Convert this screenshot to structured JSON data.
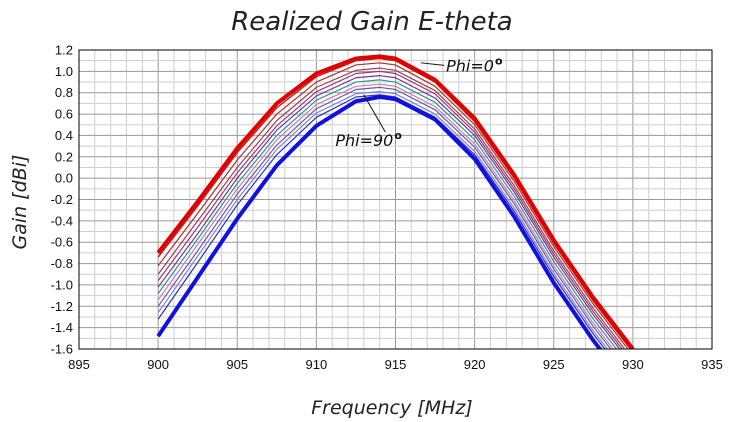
{
  "chart_data": {
    "type": "line",
    "title": "Realized Gain E-theta",
    "xlabel": "Frequency [MHz]",
    "ylabel": "Gain [dBi]",
    "xlim": [
      895,
      935
    ],
    "ylim": [
      -1.6,
      1.2
    ],
    "x_ticks": [
      "895",
      "900",
      "905",
      "910",
      "915",
      "920",
      "925",
      "930",
      "935"
    ],
    "y_ticks": [
      "1.2",
      "1.0",
      "0.8",
      "0.6",
      "0.4",
      "0.2",
      "0.0",
      "-0.2",
      "-0.4",
      "-0.6",
      "-0.8",
      "-1.0",
      "-1.2",
      "-1.4",
      "-1.6"
    ],
    "grid": true,
    "x": [
      900,
      902.5,
      905,
      907.5,
      910,
      912.5,
      914,
      915,
      917.5,
      920,
      922.5,
      925,
      927.5,
      930
    ],
    "series": [
      {
        "color": "#e00000",
        "width": 4,
        "values": [
          -0.7,
          -0.22,
          0.28,
          0.7,
          0.98,
          1.12,
          1.14,
          1.12,
          0.92,
          0.56,
          0.03,
          -0.58,
          -1.12,
          -1.6
        ]
      },
      {
        "color": "#c02020",
        "width": 1.5,
        "values": [
          -0.74,
          -0.26,
          0.24,
          0.66,
          0.95,
          1.1,
          1.12,
          1.1,
          0.9,
          0.53,
          0.0,
          -0.61,
          -1.15,
          -1.63
        ]
      },
      {
        "color": "#b03030",
        "width": 1.2,
        "values": [
          -0.82,
          -0.33,
          0.17,
          0.6,
          0.9,
          1.06,
          1.08,
          1.06,
          0.86,
          0.5,
          -0.03,
          -0.64,
          -1.18,
          -1.66
        ]
      },
      {
        "color": "#a04050",
        "width": 1.2,
        "values": [
          -0.9,
          -0.4,
          0.1,
          0.54,
          0.85,
          1.01,
          1.03,
          1.01,
          0.82,
          0.46,
          -0.07,
          -0.68,
          -1.22,
          -1.7
        ]
      },
      {
        "color": "#904070",
        "width": 1.2,
        "values": [
          -0.96,
          -0.46,
          0.05,
          0.49,
          0.81,
          0.98,
          1.0,
          0.98,
          0.79,
          0.43,
          -0.1,
          -0.71,
          -1.25,
          -1.73
        ]
      },
      {
        "color": "#8030a0",
        "width": 1.2,
        "values": [
          -1.02,
          -0.52,
          0.0,
          0.45,
          0.77,
          0.94,
          0.96,
          0.94,
          0.75,
          0.4,
          -0.13,
          -0.74,
          -1.28,
          -1.76
        ]
      },
      {
        "color": "#20a080",
        "width": 1.2,
        "values": [
          -1.08,
          -0.57,
          -0.05,
          0.4,
          0.73,
          0.9,
          0.92,
          0.9,
          0.71,
          0.36,
          -0.17,
          -0.78,
          -1.32,
          -1.8
        ]
      },
      {
        "color": "#e070c0",
        "width": 1.2,
        "values": [
          -1.14,
          -0.62,
          -0.1,
          0.36,
          0.69,
          0.86,
          0.88,
          0.86,
          0.67,
          0.32,
          -0.21,
          -0.82,
          -1.36,
          -1.84
        ]
      },
      {
        "color": "#6060a0",
        "width": 1.2,
        "values": [
          -1.2,
          -0.68,
          -0.15,
          0.31,
          0.65,
          0.83,
          0.85,
          0.83,
          0.64,
          0.29,
          -0.24,
          -0.85,
          -1.39,
          -1.87
        ]
      },
      {
        "color": "#8080e0",
        "width": 1.2,
        "values": [
          -1.26,
          -0.73,
          -0.2,
          0.27,
          0.61,
          0.79,
          0.81,
          0.79,
          0.6,
          0.25,
          -0.28,
          -0.89,
          -1.43,
          -1.91
        ]
      },
      {
        "color": "#3030c0",
        "width": 1.2,
        "values": [
          -1.32,
          -0.79,
          -0.25,
          0.22,
          0.57,
          0.76,
          0.78,
          0.76,
          0.57,
          0.22,
          -0.31,
          -0.92,
          -1.46,
          -1.94
        ]
      },
      {
        "color": "#1010e0",
        "width": 4,
        "values": [
          -1.48,
          -0.93,
          -0.38,
          0.12,
          0.49,
          0.72,
          0.76,
          0.74,
          0.55,
          0.18,
          -0.36,
          -0.98,
          -1.52,
          -2.0
        ]
      }
    ],
    "annotations": [
      {
        "text": "Phi=0",
        "sup": "o",
        "x": 918.2,
        "y": 1.0,
        "arrow_to": [
          916.6,
          1.08
        ]
      },
      {
        "text": "Phi=90",
        "sup": "o",
        "x": 911.2,
        "y": 0.3,
        "arrow_to": [
          913.0,
          0.78
        ]
      }
    ]
  }
}
